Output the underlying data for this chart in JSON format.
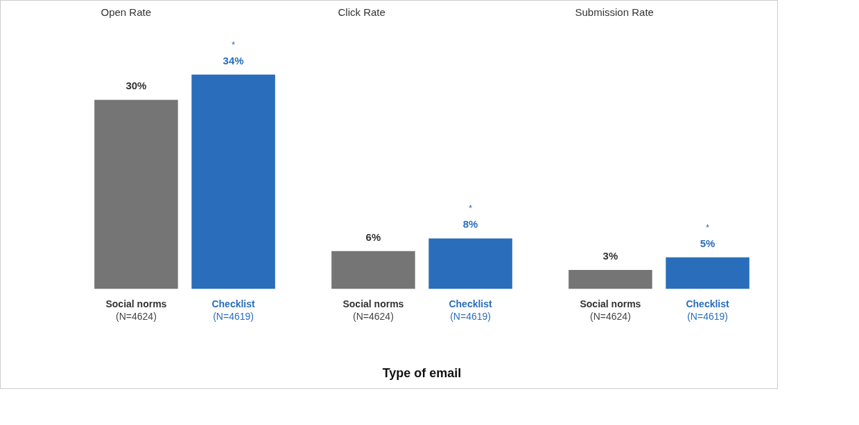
{
  "chart_data": [
    {
      "type": "bar",
      "title": "Open Rate",
      "categories": [
        "Social norms\n(N=4624)",
        "Checklist\n(N=4619)"
      ],
      "values": [
        30,
        34
      ],
      "value_labels": [
        "30%",
        "34%"
      ],
      "colors": [
        "#757575",
        "#2a6ebb"
      ],
      "annotations": [
        "*"
      ]
    },
    {
      "type": "bar",
      "title": "Click Rate",
      "xlabel": "Type of email",
      "categories": [
        "Social norms\n(N=4624)",
        "Checklist\n(N=4619)"
      ],
      "values": [
        6,
        8
      ],
      "value_labels": [
        "6%",
        "8%"
      ],
      "colors": [
        "#757575",
        "#2a6ebb"
      ],
      "annotations": [
        "*"
      ]
    },
    {
      "type": "bar",
      "title": "Submission Rate",
      "categories": [
        "Social norms\n(N=4624)",
        "Checklist\n(N=4619)"
      ],
      "values": [
        3,
        5
      ],
      "value_labels": [
        "3%",
        "5%"
      ],
      "colors": [
        "#757575",
        "#2a6ebb"
      ],
      "annotations": [
        "*"
      ]
    }
  ]
}
